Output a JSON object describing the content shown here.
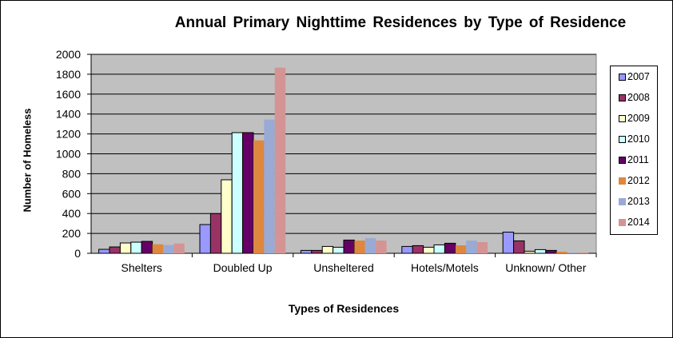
{
  "chart_data": {
    "type": "bar",
    "title": "Annual Primary Nighttime Residences by Type of Residence",
    "xlabel": "Types of Residences",
    "ylabel": "Number of Homeless",
    "ylim": [
      0,
      2000
    ],
    "yticks": [
      "0",
      "200",
      "400",
      "600",
      "800",
      "1000",
      "1200",
      "1400",
      "1600",
      "1800",
      "2000"
    ],
    "grid": true,
    "legend": "right",
    "categories": [
      "Shelters",
      "Doubled Up",
      "Unsheltered",
      "Hotels/Motels",
      "Unknown/ Other"
    ],
    "series": [
      {
        "name": "2007",
        "color": "#9999FF",
        "values": [
          40,
          289,
          29,
          69,
          213
        ]
      },
      {
        "name": "2008",
        "color": "#993366",
        "values": [
          64,
          399,
          29,
          77,
          125
        ]
      },
      {
        "name": "2009",
        "color": "#FFFFCC",
        "values": [
          104,
          739,
          69,
          61,
          21
        ]
      },
      {
        "name": "2010",
        "color": "#CCFFFF",
        "values": [
          112,
          1213,
          61,
          85,
          37
        ]
      },
      {
        "name": "2011",
        "color": "#660066",
        "values": [
          120,
          1213,
          133,
          101,
          29
        ]
      },
      {
        "name": "2012",
        "color": "#DD873F",
        "values": [
          91,
          1135,
          128,
          80,
          16
        ]
      },
      {
        "name": "2013",
        "color": "#99AAD4",
        "values": [
          83,
          1344,
          152,
          128,
          8
        ]
      },
      {
        "name": "2014",
        "color": "#D49494",
        "values": [
          99,
          1866,
          128,
          112,
          8
        ]
      }
    ]
  }
}
